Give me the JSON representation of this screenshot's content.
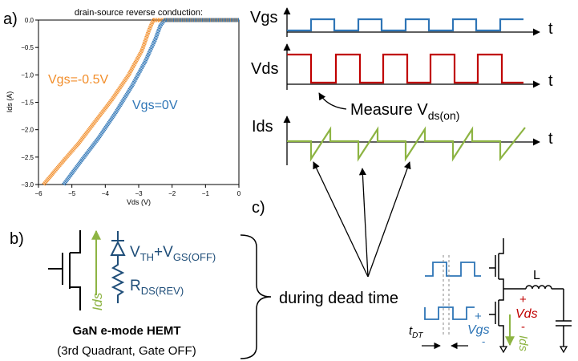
{
  "panel_labels": {
    "a": "a)",
    "b": "b)",
    "c": "c)"
  },
  "chart_data": {
    "type": "line",
    "title": "drain-source reverse conduction:",
    "xlabel": "Vds (V)",
    "ylabel": "Ids (A)",
    "xlim": [
      -6,
      0
    ],
    "ylim": [
      -3.0,
      0.0
    ],
    "x_ticks": [
      "−6",
      "−5",
      "−4",
      "−3",
      "−2",
      "−1",
      "0"
    ],
    "y_ticks": [
      "0.0",
      "−0.5",
      "−1.0",
      "−1.5",
      "−2.0",
      "−2.5",
      "−3.0"
    ],
    "grid": false,
    "series": [
      {
        "name": "Vgs=-0.5V",
        "color": "#f28e2b",
        "x": [
          -5.85,
          -5.3,
          -4.8,
          -4.3,
          -3.8,
          -3.3,
          -2.9,
          -2.7,
          -2.6,
          -2.55
        ],
        "y": [
          -3.0,
          -2.6,
          -2.25,
          -1.85,
          -1.45,
          -1.0,
          -0.55,
          -0.2,
          -0.05,
          0.0
        ]
      },
      {
        "name": "Vgs=0V",
        "color": "#2e75b6",
        "x": [
          -5.25,
          -4.7,
          -4.2,
          -3.7,
          -3.2,
          -2.8,
          -2.5,
          -2.35,
          -2.25,
          -2.2
        ],
        "y": [
          -3.0,
          -2.55,
          -2.15,
          -1.7,
          -1.2,
          -0.75,
          -0.35,
          -0.1,
          -0.02,
          0.0
        ]
      }
    ]
  },
  "waveforms": {
    "vgs_label": "Vgs",
    "vds_label": "Vds",
    "ids_label": "Ids",
    "t_label": "t",
    "measure_label": "Measure V",
    "measure_sub": "ds(on)",
    "vgs_color": "#2e75b6",
    "vds_color": "#c00000",
    "ids_color": "#8db443"
  },
  "circuit_b": {
    "vth_main": "V",
    "vth_sub": "TH",
    "plus": "+V",
    "vgs_off_sub": "GS(OFF)",
    "rds_main": "R",
    "rds_sub": "DS(REV)",
    "ids_label": "Ids",
    "title": "GaN e-mode HEMT",
    "subtitle": "(3rd Quadrant, Gate OFF)",
    "text_color": "#1f4e79",
    "ids_color": "#8db443"
  },
  "dead_time_label": "during dead time",
  "circuit_c": {
    "inductor_label": "L",
    "vds_plus": "+",
    "vds_label": "Vds",
    "vds_minus": "-",
    "vgs_plus": "+",
    "vgs_label": "Vgs",
    "vgs_minus": "-",
    "ids_label": "Ids",
    "tdt_main": "t",
    "tdt_sub": "DT"
  }
}
